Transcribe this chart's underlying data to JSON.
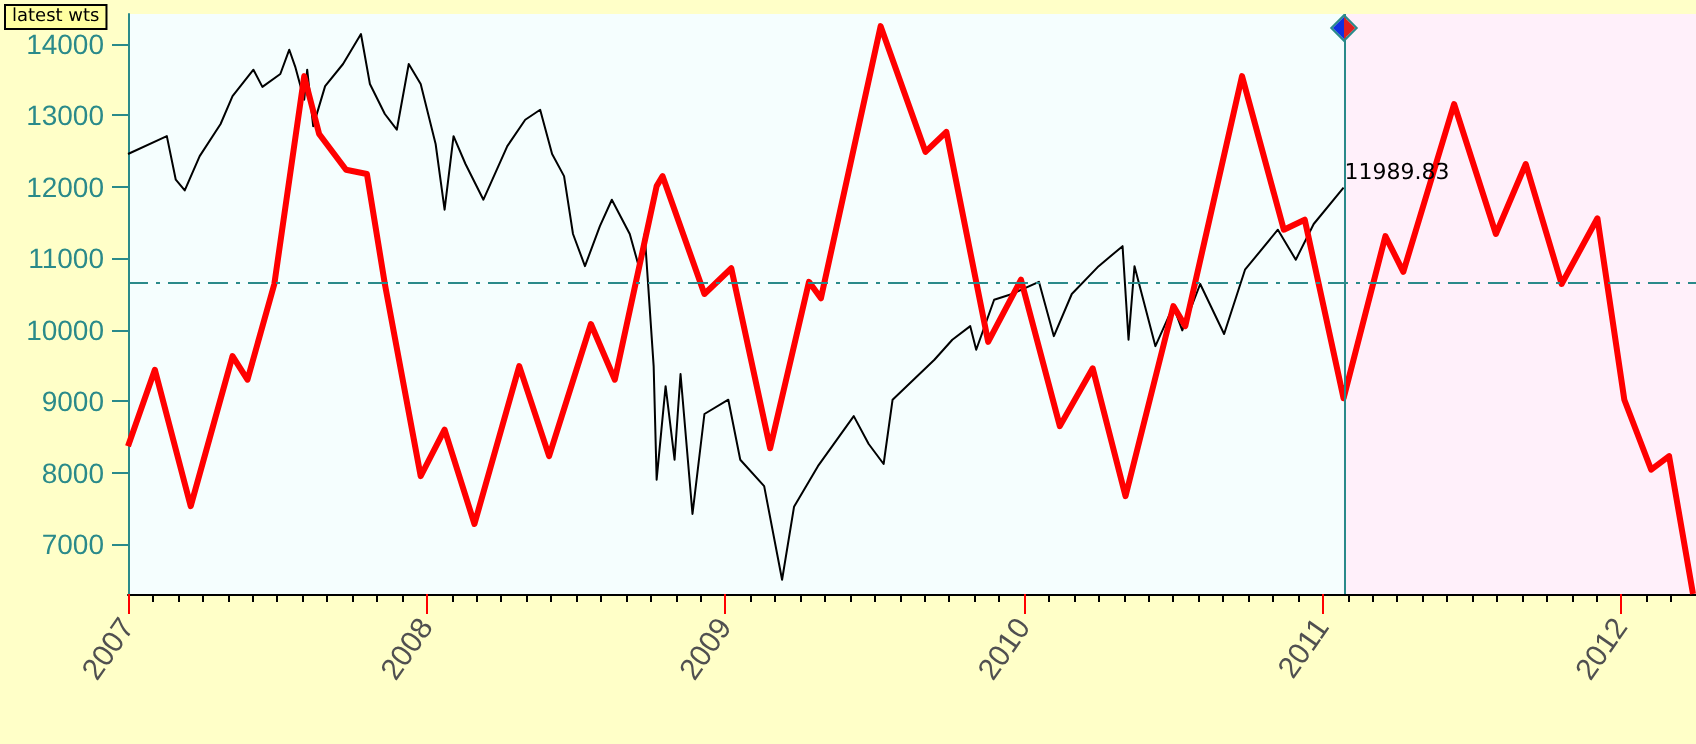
{
  "chart_data": {
    "type": "line",
    "xlim": [
      2007,
      2012.25
    ],
    "xticks": [
      2007,
      2008,
      2009,
      2010,
      2011,
      2012
    ],
    "ylim": [
      6300,
      14420
    ],
    "yticks": [
      7000,
      8000,
      9000,
      10000,
      11000,
      12000,
      13000,
      14000
    ],
    "grid": false,
    "marker": "none",
    "line_style": "solid",
    "series": [
      {
        "color": "#000000",
        "x": [
          2007.0,
          2007.13,
          2007.16,
          2007.19,
          2007.24,
          2007.31,
          2007.35,
          2007.42,
          2007.45,
          2007.51,
          2007.54,
          2007.56,
          2007.59,
          2007.6,
          2007.62,
          2007.66,
          2007.72,
          2007.78,
          2007.81,
          2007.86,
          2007.9,
          2007.94,
          2007.98,
          2008.03,
          2008.06,
          2008.09,
          2008.13,
          2008.19,
          2008.27,
          2008.33,
          2008.38,
          2008.42,
          2008.46,
          2008.49,
          2008.53,
          2008.58,
          2008.62,
          2008.68,
          2008.71,
          2008.73,
          2008.76,
          2008.77,
          2008.8,
          2008.83,
          2008.85,
          2008.89,
          2008.93,
          2009.01,
          2009.05,
          2009.13,
          2009.19,
          2009.23,
          2009.31,
          2009.43,
          2009.48,
          2009.53,
          2009.56,
          2009.63,
          2009.7,
          2009.76,
          2009.82,
          2009.84,
          2009.9,
          2009.96,
          2010.05,
          2010.1,
          2010.16,
          2010.25,
          2010.33,
          2010.35,
          2010.37,
          2010.44,
          2010.5,
          2010.53,
          2010.59,
          2010.67,
          2010.74,
          2010.85,
          2010.91,
          2010.97,
          2011.07
        ],
        "values": [
          12460,
          12710,
          12100,
          11950,
          12430,
          12880,
          13270,
          13640,
          13400,
          13580,
          13920,
          13680,
          13220,
          13640,
          12850,
          13410,
          13720,
          14140,
          13440,
          13020,
          12800,
          13720,
          13440,
          12600,
          11680,
          12710,
          12320,
          11820,
          12570,
          12940,
          13080,
          12460,
          12150,
          11340,
          10890,
          11450,
          11820,
          11340,
          10890,
          11340,
          9490,
          7900,
          9210,
          8180,
          9380,
          7420,
          8820,
          9020,
          8180,
          7810,
          6500,
          7520,
          8090,
          8790,
          8400,
          8120,
          9020,
          9300,
          9580,
          9860,
          10050,
          9720,
          10420,
          10500,
          10670,
          9910,
          10500,
          10890,
          11170,
          9860,
          10890,
          9770,
          10330,
          9990,
          10640,
          9940,
          10840,
          11400,
          10980,
          11480,
          11990
        ]
      },
      {
        "color": "#ff0000",
        "x": [
          2007.0,
          2007.09,
          2007.21,
          2007.35,
          2007.4,
          2007.49,
          2007.59,
          2007.64,
          2007.73,
          2007.8,
          2007.86,
          2007.98,
          2008.06,
          2008.16,
          2008.31,
          2008.41,
          2008.55,
          2008.63,
          2008.77,
          2008.79,
          2008.93,
          2009.02,
          2009.15,
          2009.28,
          2009.32,
          2009.52,
          2009.67,
          2009.74,
          2009.88,
          2009.99,
          2010.12,
          2010.23,
          2010.34,
          2010.5,
          2010.54,
          2010.73,
          2010.87,
          2010.94,
          2011.07,
          2011.21,
          2011.27,
          2011.44,
          2011.58,
          2011.68,
          2011.8,
          2011.92,
          2012.01,
          2012.1,
          2012.16,
          2012.24
        ],
        "values": [
          8370,
          9440,
          7530,
          9630,
          9300,
          10640,
          13550,
          12740,
          12240,
          12180,
          10640,
          7950,
          8600,
          7280,
          9490,
          8230,
          10080,
          9300,
          12010,
          12150,
          10500,
          10860,
          8340,
          10670,
          10440,
          14250,
          12490,
          12770,
          9830,
          10700,
          8650,
          9460,
          7670,
          10330,
          10050,
          13550,
          11400,
          11540,
          9040,
          11310,
          10810,
          13160,
          11340,
          12320,
          10640,
          11560,
          9020,
          8040,
          8230,
          6300
        ]
      }
    ],
    "ref_lines": [
      {
        "axis": "y",
        "value": 10670,
        "color": "#2a8a8a",
        "line_style": "dashed"
      },
      {
        "axis": "x",
        "value": 2011.07,
        "color": "#2a8a8a",
        "line_style": "solid"
      }
    ],
    "bands": [
      {
        "axis": "x",
        "from": 2011.07,
        "to": 2012.25,
        "color": "#fff0fa"
      }
    ],
    "annotations": [
      "latest wts",
      {
        "text": "11989.83",
        "x": 2011.07,
        "y": 11989.83
      }
    ]
  }
}
